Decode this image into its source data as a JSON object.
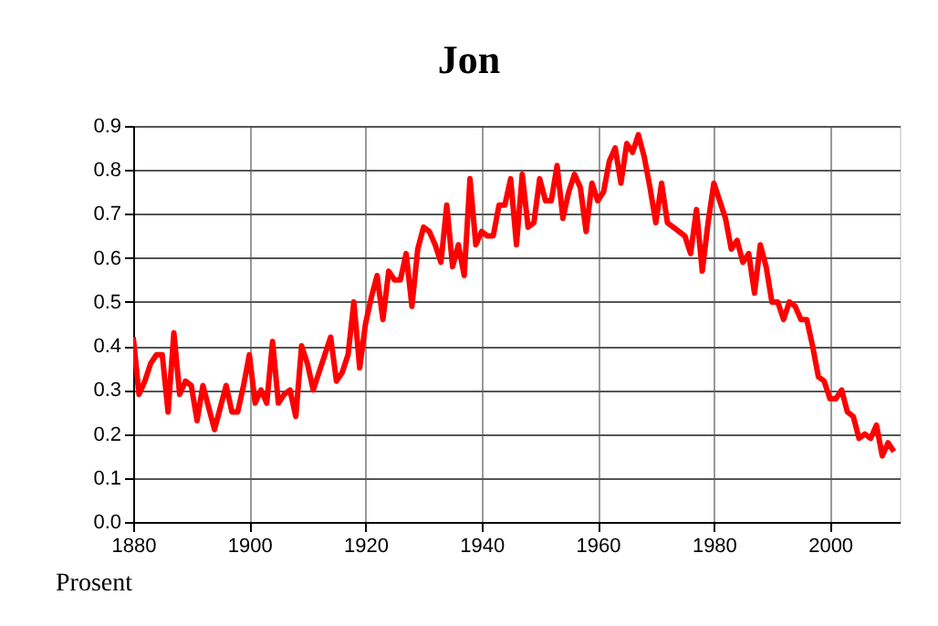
{
  "chart_data": {
    "type": "line",
    "title": "Jon",
    "ylabel": "Prosent",
    "x": [
      1880,
      1881,
      1882,
      1883,
      1884,
      1885,
      1886,
      1887,
      1888,
      1889,
      1890,
      1891,
      1892,
      1893,
      1894,
      1895,
      1896,
      1897,
      1898,
      1899,
      1900,
      1901,
      1902,
      1903,
      1904,
      1905,
      1906,
      1907,
      1908,
      1909,
      1910,
      1911,
      1912,
      1913,
      1914,
      1915,
      1916,
      1917,
      1918,
      1919,
      1920,
      1921,
      1922,
      1923,
      1924,
      1925,
      1926,
      1927,
      1928,
      1929,
      1930,
      1931,
      1932,
      1933,
      1934,
      1935,
      1936,
      1937,
      1938,
      1939,
      1940,
      1941,
      1942,
      1943,
      1944,
      1945,
      1946,
      1947,
      1948,
      1949,
      1950,
      1951,
      1952,
      1953,
      1954,
      1955,
      1956,
      1957,
      1958,
      1959,
      1960,
      1961,
      1962,
      1963,
      1964,
      1965,
      1966,
      1967,
      1968,
      1969,
      1970,
      1971,
      1972,
      1973,
      1974,
      1975,
      1976,
      1977,
      1978,
      1979,
      1980,
      1981,
      1982,
      1983,
      1984,
      1985,
      1986,
      1987,
      1988,
      1989,
      1990,
      1991,
      1992,
      1993,
      1994,
      1995,
      1996,
      1997,
      1998,
      1999,
      2000,
      2001,
      2002,
      2003,
      2004,
      2005,
      2006,
      2007,
      2008,
      2009,
      2010,
      2011
    ],
    "series": [
      {
        "color": "#ff0000",
        "values": [
          0.42,
          0.29,
          0.32,
          0.36,
          0.38,
          0.38,
          0.25,
          0.43,
          0.29,
          0.32,
          0.31,
          0.23,
          0.31,
          0.26,
          0.21,
          0.26,
          0.31,
          0.25,
          0.25,
          0.31,
          0.38,
          0.27,
          0.3,
          0.27,
          0.41,
          0.27,
          0.29,
          0.3,
          0.24,
          0.4,
          0.36,
          0.3,
          0.34,
          0.38,
          0.42,
          0.32,
          0.34,
          0.38,
          0.5,
          0.35,
          0.45,
          0.51,
          0.56,
          0.46,
          0.57,
          0.55,
          0.55,
          0.61,
          0.49,
          0.62,
          0.67,
          0.66,
          0.63,
          0.59,
          0.72,
          0.58,
          0.63,
          0.56,
          0.78,
          0.63,
          0.66,
          0.65,
          0.65,
          0.72,
          0.72,
          0.78,
          0.63,
          0.79,
          0.67,
          0.68,
          0.78,
          0.73,
          0.73,
          0.81,
          0.69,
          0.75,
          0.79,
          0.76,
          0.66,
          0.77,
          0.73,
          0.75,
          0.82,
          0.85,
          0.77,
          0.86,
          0.84,
          0.88,
          0.83,
          0.76,
          0.68,
          0.77,
          0.68,
          0.67,
          0.66,
          0.65,
          0.61,
          0.71,
          0.57,
          0.68,
          0.77,
          0.73,
          0.69,
          0.62,
          0.64,
          0.59,
          0.61,
          0.52,
          0.63,
          0.58,
          0.5,
          0.5,
          0.46,
          0.5,
          0.49,
          0.46,
          0.46,
          0.4,
          0.33,
          0.32,
          0.28,
          0.28,
          0.3,
          0.25,
          0.24,
          0.19,
          0.2,
          0.19,
          0.22,
          0.15,
          0.18,
          0.16
        ]
      }
    ],
    "xlim": [
      1880,
      2012
    ],
    "xticks": [
      1880,
      1900,
      1920,
      1940,
      1960,
      1980,
      2000
    ],
    "ylim": [
      0,
      0.9
    ],
    "yticks": [
      {
        "value": 0,
        "label": "0.0"
      },
      0.1,
      0.2,
      0.3,
      0.4,
      0.5,
      0.6,
      0.7,
      0.8,
      0.9
    ],
    "grid": true,
    "line_style": "solid",
    "marker": "none"
  }
}
